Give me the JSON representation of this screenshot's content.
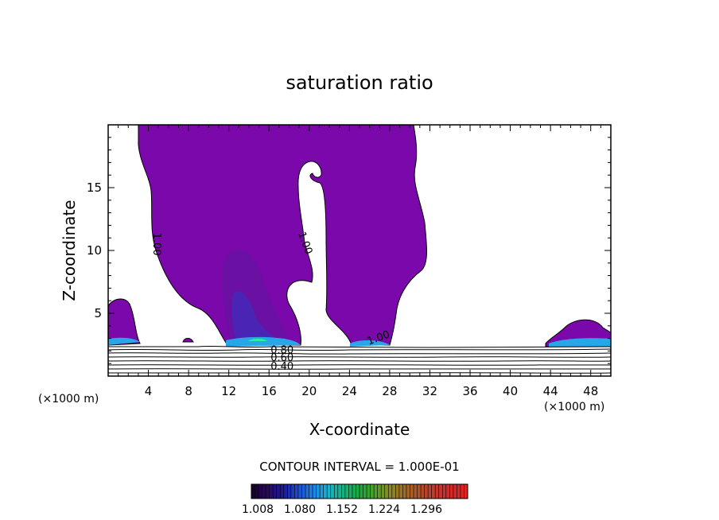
{
  "chart_data": {
    "type": "contour",
    "title": "saturation ratio",
    "xlabel": "X-coordinate",
    "ylabel": "Z-coordinate",
    "x_unit_left": "(×1000 m)",
    "x_unit_right": "(×1000 m)",
    "xlim": [
      0,
      50
    ],
    "ylim": [
      0,
      20
    ],
    "x_ticks": [
      4,
      8,
      12,
      16,
      20,
      24,
      28,
      32,
      36,
      40,
      44,
      48
    ],
    "y_ticks": [
      5,
      10,
      15
    ],
    "contour_labels": [
      {
        "text": "1.00",
        "x": 4.5,
        "y": 10.5,
        "angle": 90
      },
      {
        "text": "1.00",
        "x": 19.3,
        "y": 10.5,
        "angle": 70
      },
      {
        "text": "1.00",
        "x": 27.0,
        "y": 2.8,
        "angle": -20
      },
      {
        "text": "0.80",
        "x": 17.3,
        "y": 1.8,
        "angle": 0
      },
      {
        "text": "0.60",
        "x": 17.3,
        "y": 1.2,
        "angle": 0
      },
      {
        "text": "0.40",
        "x": 17.3,
        "y": 0.5,
        "angle": 0
      }
    ],
    "contour_interval_text": "CONTOUR INTERVAL = 1.000E-01",
    "colorbar": {
      "tick_labels": [
        "1.008",
        "1.080",
        "1.152",
        "1.224",
        "1.296"
      ],
      "colors": [
        "#1a0033",
        "#2a0a60",
        "#1b1b9a",
        "#1e4fd0",
        "#1e86e6",
        "#19b4c8",
        "#17b07a",
        "#1aa83c",
        "#4ea02a",
        "#8a8a26",
        "#a06a26",
        "#b04e28",
        "#c03a30",
        "#d02a2a",
        "#e02420"
      ]
    },
    "colors": {
      "supersat_region": "#7a08aa",
      "core_dark": "#5a149a",
      "core_blue": "#3a2ab8",
      "near_surface_band": "#29a6e8",
      "peak": "#2cf0a0"
    }
  }
}
